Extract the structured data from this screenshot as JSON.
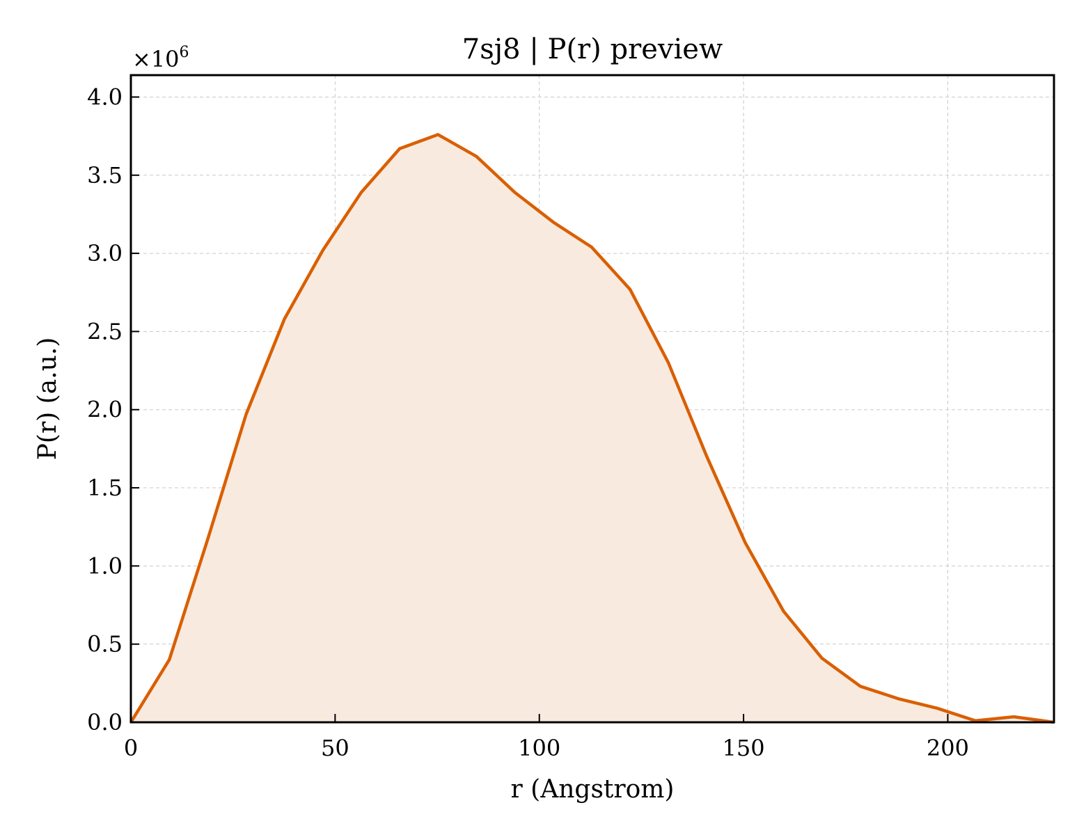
{
  "chart_data": {
    "type": "area",
    "title": "7sj8 | P(r) preview",
    "xlabel": "r (Angstrom)",
    "ylabel": "P(r) (a.u.)",
    "y_scale_label": "×10",
    "y_scale_exponent": "6",
    "xlim": [
      0,
      226
    ],
    "ylim": [
      0,
      4.14
    ],
    "x_ticks": [
      0,
      50,
      100,
      150,
      200
    ],
    "x_tick_labels": [
      "0",
      "50",
      "100",
      "150",
      "200"
    ],
    "y_ticks": [
      0,
      0.5,
      1.0,
      1.5,
      2.0,
      2.5,
      3.0,
      3.5,
      4.0
    ],
    "y_tick_labels": [
      "0.0",
      "0.5",
      "1.0",
      "1.5",
      "2.0",
      "2.5",
      "3.0",
      "3.5",
      "4.0"
    ],
    "grid": true,
    "ticks_direction": "in",
    "line_color": "#d95f02",
    "fill_color": "#f9eadf",
    "grid_color": "#c8c8c8",
    "series": [
      {
        "x": [
          0,
          9.4,
          18.8,
          28.2,
          37.6,
          47.0,
          56.4,
          65.8,
          75.2,
          84.6,
          94.0,
          103.4,
          112.8,
          122.2,
          131.6,
          141.0,
          150.4,
          159.8,
          169.2,
          178.6,
          188.0,
          197.4,
          206.8,
          216.2,
          226.0
        ],
        "values": [
          0.0,
          0.4,
          1.17,
          1.97,
          2.58,
          3.02,
          3.39,
          3.67,
          3.76,
          3.62,
          3.39,
          3.2,
          3.04,
          2.77,
          2.3,
          1.7,
          1.15,
          0.71,
          0.41,
          0.23,
          0.15,
          0.09,
          0.01,
          0.035,
          0.0
        ]
      }
    ]
  }
}
